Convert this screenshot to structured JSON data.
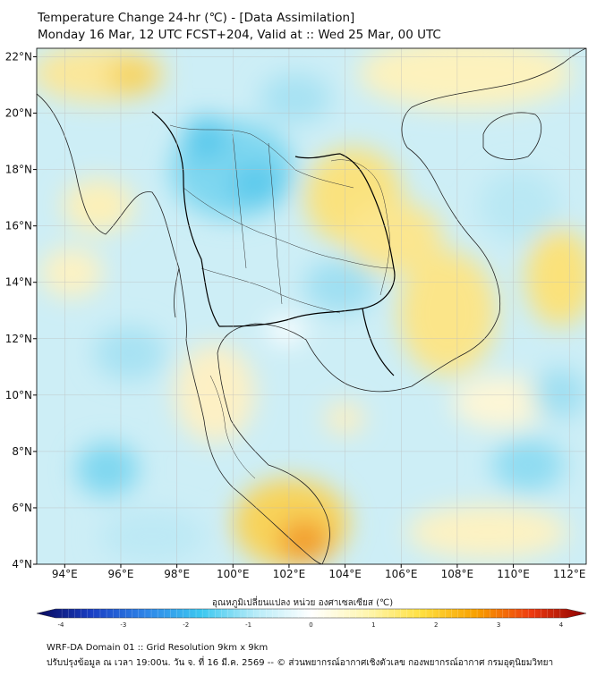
{
  "title_line1": "Temperature Change 24-hr (℃) - [Data Assimilation]",
  "title_line2": "Monday 16 Mar, 12 UTC FCST+204, Valid at :: Wed 25 Mar, 00 UTC",
  "map": {
    "lat_labels": [
      "22°N",
      "20°N",
      "18°N",
      "16°N",
      "14°N",
      "12°N",
      "10°N",
      "8°N",
      "6°N",
      "4°N"
    ],
    "lon_labels": [
      "94°E",
      "96°E",
      "98°E",
      "100°E",
      "102°E",
      "104°E",
      "106°E",
      "108°E",
      "110°E",
      "112°E"
    ],
    "lat_range": [
      4,
      22.3
    ],
    "lon_range": [
      93,
      112.6
    ],
    "grid": true
  },
  "colorbar": {
    "title": "อุณหภูมิเปลี่ยนแปลง หน่วย องศาเซลเซียส (℃)",
    "ticks": [
      "-4",
      "-3",
      "-2",
      "-1",
      "0",
      "1",
      "2",
      "3",
      "4"
    ],
    "range": [
      -4,
      4
    ],
    "colors": [
      "#08085a",
      "#1a3fc4",
      "#2f86e8",
      "#3cc8f0",
      "#b8ecf8",
      "#ffffff",
      "#fff6b0",
      "#ffe040",
      "#f8a000",
      "#ee3a10",
      "#8a0000"
    ]
  },
  "footer_line1": "WRF-DA Domain 01 :: Grid Resolution 9km x 9km",
  "footer_line2": "ปรับปรุงข้อมูล ณ เวลา 19:00น. วัน จ. ที่ 16 มี.ค. 2569 -- © ส่วนพยากรณ์อากาศเชิงตัวเลข กองพยากรณ์อากาศ กรมอุตุนิยมวิทยา"
}
